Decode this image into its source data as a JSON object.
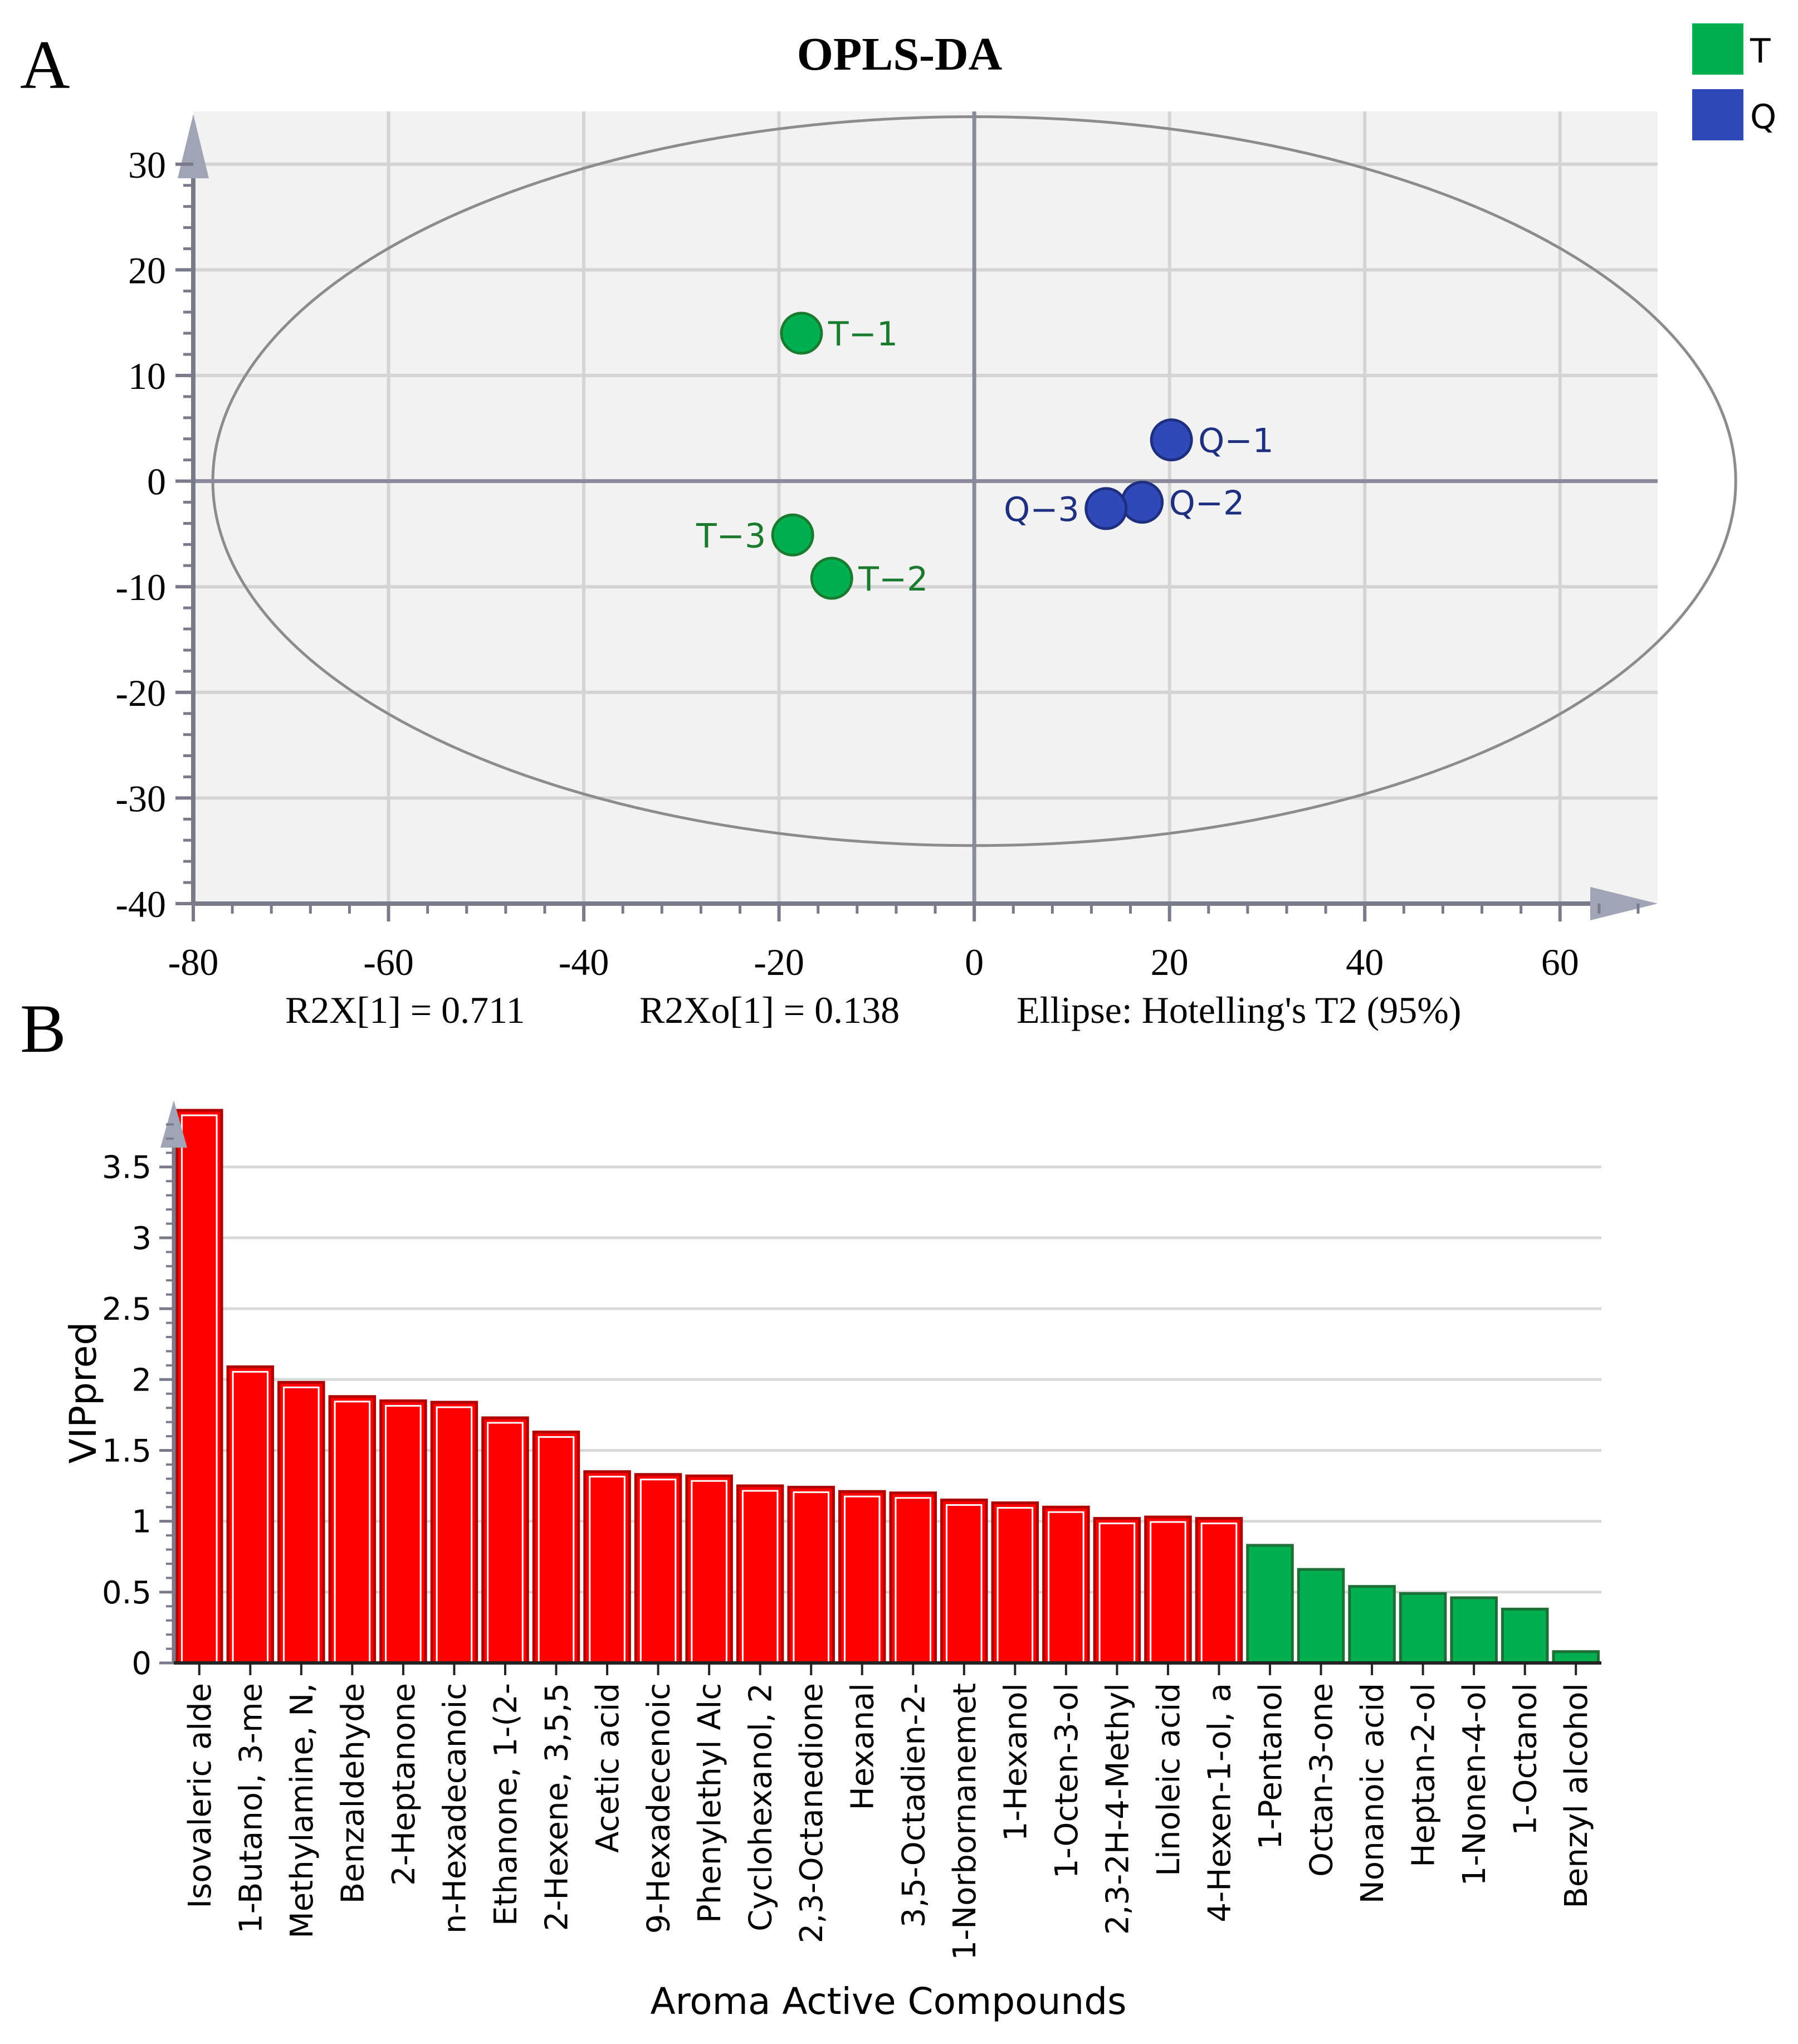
{
  "panel_a_letter": "A",
  "panel_b_letter": "B",
  "chart_data": [
    {
      "type": "scatter",
      "title": "OPLS-DA",
      "xlim": [
        -80,
        70
      ],
      "ylim": [
        -40,
        35
      ],
      "xticks": [
        "-80",
        "-60",
        "-40",
        "-20",
        "0",
        "20",
        "40",
        "60"
      ],
      "yticks": [
        "30",
        "20",
        "10",
        "0",
        "-10",
        "-20",
        "-30",
        "-40"
      ],
      "xtick_values": [
        -80,
        -60,
        -40,
        -20,
        0,
        20,
        40,
        60
      ],
      "ytick_values": [
        30,
        20,
        10,
        0,
        -10,
        -20,
        -30,
        -40
      ],
      "grid": true,
      "legend_position": "top-right",
      "series": [
        {
          "name": "T",
          "color": "#00b050",
          "label_color": "#1a7a2e",
          "points": [
            {
              "label": "T−1",
              "x": -17.7,
              "y": 14.0
            },
            {
              "label": "T−2",
              "x": -14.6,
              "y": -9.2
            },
            {
              "label": "T−3",
              "x": -18.6,
              "y": -5.1
            }
          ]
        },
        {
          "name": "Q",
          "color": "#3049b8",
          "label_color": "#1f2f80",
          "points": [
            {
              "label": "Q−1",
              "x": 20.2,
              "y": 3.9
            },
            {
              "label": "Q−2",
              "x": 17.2,
              "y": -2.0
            },
            {
              "label": "Q−3",
              "x": 13.5,
              "y": -2.6
            }
          ]
        }
      ],
      "ellipse": {
        "center_x": 0,
        "center_y": 0,
        "semi_axis_x": 78,
        "semi_axis_y": 34.5
      },
      "annotations": [
        "R2X[1] = 0.711",
        "R2Xo[1] = 0.138",
        "Ellipse: Hotelling's T2 (95%)"
      ]
    },
    {
      "type": "bar",
      "xlabel": "Aroma Active Compounds",
      "ylabel": "VIPpred",
      "ylim": [
        0,
        3.9
      ],
      "yticks": [
        "0",
        "0.5",
        "1",
        "1.5",
        "2",
        "2.5",
        "3",
        "3.5"
      ],
      "ytick_values": [
        0,
        0.5,
        1,
        1.5,
        2,
        2.5,
        3,
        3.5
      ],
      "grid": true,
      "colors": {
        "high": "#ff0000",
        "high_border": "#b00000",
        "low": "#00b050",
        "low_border": "#1f6e35"
      },
      "categories": [
        "Isovaleric alde",
        "1-Butanol, 3-me",
        "Methylamine, N,",
        "Benzaldehyde",
        "2-Heptanone",
        "n-Hexadecanoic",
        "Ethanone, 1-(2-",
        "2-Hexene, 3,5,5",
        "Acetic acid",
        "9-Hexadecenoic",
        "Phenylethyl Alc",
        "Cyclohexanol, 2",
        "2,3-Octanedione",
        "Hexanal",
        "3,5-Octadien-2-",
        "1-Norbornanemet",
        "1-Hexanol",
        "1-Octen-3-ol",
        "2,3-2H-4-Methyl",
        "Linoleic acid",
        "4-Hexen-1-ol, a",
        "1-Pentanol",
        "Octan-3-one",
        "Nonanoic acid",
        "Heptan-2-ol",
        "1-Nonen-4-ol",
        "1-Octanol",
        "Benzyl alcohol"
      ],
      "values": [
        3.9,
        2.09,
        1.98,
        1.88,
        1.85,
        1.84,
        1.73,
        1.63,
        1.35,
        1.33,
        1.32,
        1.25,
        1.24,
        1.21,
        1.2,
        1.15,
        1.13,
        1.1,
        1.02,
        1.03,
        1.02,
        0.83,
        0.66,
        0.54,
        0.49,
        0.46,
        0.38,
        0.08
      ]
    }
  ]
}
